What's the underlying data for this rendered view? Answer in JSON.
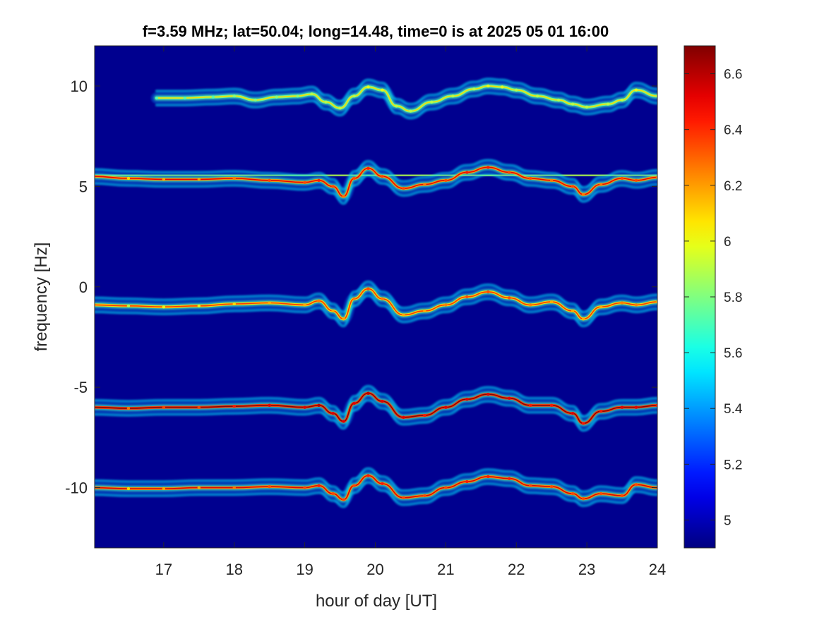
{
  "chart_data": {
    "type": "heatmap",
    "title": "f=3.59 MHz;  lat=50.04; long=14.48, time=0 is at 2025 05 01 16:00",
    "xlabel": "hour of day [UT]",
    "ylabel": "frequency [Hz]",
    "xlim": [
      16.02,
      24.0
    ],
    "ylim": [
      -13.0,
      12.0
    ],
    "x_ticks": [
      17,
      18,
      19,
      20,
      21,
      22,
      23,
      24
    ],
    "y_ticks": [
      -10,
      -5,
      0,
      5,
      10
    ],
    "x_tick_labels": [
      "17",
      "18",
      "19",
      "20",
      "21",
      "22",
      "23",
      "24"
    ],
    "y_tick_labels": [
      "-10",
      "-5",
      "0",
      "5",
      "10"
    ],
    "colorbar": {
      "colormap": "jet",
      "clim": [
        4.9,
        6.7
      ],
      "ticks": [
        5.0,
        5.2,
        5.4,
        5.6,
        5.8,
        6.0,
        6.2,
        6.4,
        6.6
      ],
      "tick_labels": [
        "5",
        "5.2",
        "5.4",
        "5.6",
        "5.8",
        "6",
        "6.2",
        "6.4",
        "6.6"
      ]
    },
    "background_color": "#00008f",
    "bands": [
      {
        "name": "",
        "x": [
          16.0,
          16.5,
          17.0,
          17.5,
          18.0,
          18.5,
          19.0,
          19.2,
          19.4,
          19.55,
          19.7,
          19.9,
          20.1,
          20.4,
          20.7,
          21.0,
          21.3,
          21.6,
          21.9,
          22.2,
          22.5,
          22.8,
          22.95,
          23.2,
          23.5,
          23.7,
          24.0
        ],
        "y": [
          -0.9,
          -0.95,
          -1.0,
          -0.95,
          -0.85,
          -0.8,
          -0.9,
          -0.7,
          -1.2,
          -1.6,
          -0.6,
          -0.1,
          -0.6,
          -1.4,
          -1.2,
          -0.9,
          -0.5,
          -0.25,
          -0.55,
          -0.9,
          -0.75,
          -1.2,
          -1.6,
          -1.0,
          -0.8,
          -0.9,
          -0.75
        ],
        "intensity": [
          0.5,
          0.55,
          0.6,
          0.6,
          0.65,
          0.7,
          0.7,
          0.75,
          0.7,
          0.7,
          0.75,
          0.8,
          0.75,
          0.7,
          0.7,
          0.75,
          0.8,
          0.8,
          0.8,
          0.75,
          0.7,
          0.7,
          0.7,
          0.7,
          0.75,
          0.75,
          0.7
        ]
      },
      {
        "name": "",
        "x": [
          16.0,
          16.5,
          17.0,
          17.5,
          18.0,
          18.5,
          19.0,
          19.2,
          19.4,
          19.55,
          19.7,
          19.9,
          20.1,
          20.4,
          20.7,
          21.0,
          21.3,
          21.6,
          21.9,
          22.2,
          22.5,
          22.8,
          22.95,
          23.2,
          23.5,
          23.7,
          24.0
        ],
        "y": [
          5.5,
          5.4,
          5.35,
          5.35,
          5.4,
          5.3,
          5.2,
          5.3,
          5.0,
          4.5,
          5.4,
          5.9,
          5.5,
          4.9,
          5.1,
          5.3,
          5.7,
          5.95,
          5.7,
          5.4,
          5.3,
          5.0,
          4.6,
          5.1,
          5.4,
          5.3,
          5.45
        ],
        "intensity": [
          0.6,
          0.65,
          0.7,
          0.7,
          0.75,
          0.8,
          0.8,
          0.85,
          0.8,
          0.75,
          0.8,
          0.85,
          0.8,
          0.8,
          0.75,
          0.8,
          0.85,
          0.85,
          0.8,
          0.8,
          0.75,
          0.8,
          0.75,
          0.75,
          0.8,
          0.8,
          0.75
        ]
      },
      {
        "name": "",
        "x": [
          16.0,
          16.5,
          17.0,
          17.5,
          18.0,
          18.5,
          19.0,
          19.2,
          19.4,
          19.55,
          19.7,
          19.9,
          20.1,
          20.4,
          20.7,
          21.0,
          21.3,
          21.6,
          21.9,
          22.2,
          22.5,
          22.8,
          22.95,
          23.2,
          23.5,
          23.7,
          24.0
        ],
        "y": [
          -6.0,
          -6.05,
          -6.0,
          -6.0,
          -5.95,
          -5.9,
          -6.0,
          -5.9,
          -6.3,
          -6.7,
          -5.8,
          -5.3,
          -5.7,
          -6.5,
          -6.4,
          -6.0,
          -5.6,
          -5.35,
          -5.55,
          -5.9,
          -5.9,
          -6.3,
          -6.8,
          -6.2,
          -6.0,
          -6.0,
          -5.9
        ],
        "intensity": [
          0.7,
          0.75,
          0.8,
          0.8,
          0.85,
          0.9,
          0.9,
          0.95,
          0.9,
          0.9,
          0.9,
          0.95,
          0.9,
          0.9,
          0.85,
          0.9,
          0.9,
          0.9,
          0.9,
          0.85,
          0.85,
          0.9,
          0.85,
          0.85,
          0.9,
          0.9,
          0.85
        ]
      },
      {
        "name": "",
        "x": [
          16.0,
          16.5,
          17.0,
          17.5,
          18.0,
          18.5,
          19.0,
          19.2,
          19.4,
          19.55,
          19.7,
          19.9,
          20.1,
          20.4,
          20.7,
          21.0,
          21.3,
          21.6,
          21.9,
          22.2,
          22.5,
          22.8,
          22.95,
          23.2,
          23.5,
          23.7,
          24.0
        ],
        "y": [
          -10.0,
          -10.05,
          -10.05,
          -10.0,
          -10.0,
          -9.95,
          -10.0,
          -9.9,
          -10.3,
          -10.6,
          -9.9,
          -9.4,
          -9.8,
          -10.5,
          -10.4,
          -10.0,
          -9.7,
          -9.45,
          -9.55,
          -9.9,
          -9.95,
          -10.3,
          -10.55,
          -10.3,
          -10.4,
          -9.85,
          -10.0
        ],
        "intensity": [
          0.6,
          0.65,
          0.7,
          0.7,
          0.75,
          0.8,
          0.8,
          0.85,
          0.8,
          0.8,
          0.8,
          0.85,
          0.85,
          0.8,
          0.8,
          0.8,
          0.85,
          0.85,
          0.85,
          0.8,
          0.8,
          0.8,
          0.8,
          0.8,
          0.8,
          0.8,
          0.8
        ]
      },
      {
        "name": "",
        "x": [
          16.9,
          17.3,
          17.7,
          18.0,
          18.3,
          18.6,
          18.9,
          19.1,
          19.3,
          19.5,
          19.7,
          19.9,
          20.1,
          20.3,
          20.5,
          20.8,
          21.1,
          21.4,
          21.6,
          21.8,
          22.0,
          22.3,
          22.6,
          22.8,
          23.0,
          23.3,
          23.5,
          23.7,
          24.0
        ],
        "y": [
          9.4,
          9.4,
          9.45,
          9.5,
          9.3,
          9.45,
          9.5,
          9.6,
          9.2,
          8.9,
          9.5,
          9.95,
          9.8,
          9.0,
          8.75,
          9.2,
          9.5,
          9.85,
          10.0,
          9.95,
          9.8,
          9.5,
          9.3,
          9.1,
          8.95,
          9.1,
          9.3,
          9.8,
          9.5
        ],
        "intensity": [
          0.45,
          0.45,
          0.45,
          0.5,
          0.5,
          0.5,
          0.5,
          0.55,
          0.55,
          0.55,
          0.55,
          0.6,
          0.6,
          0.55,
          0.55,
          0.55,
          0.55,
          0.55,
          0.6,
          0.6,
          0.55,
          0.55,
          0.55,
          0.55,
          0.55,
          0.55,
          0.55,
          0.6,
          0.55
        ]
      }
    ],
    "horizontal_lines": [
      {
        "y": 5.55,
        "x_range": [
          16.0,
          24.0
        ],
        "intensity": 0.55
      }
    ]
  }
}
